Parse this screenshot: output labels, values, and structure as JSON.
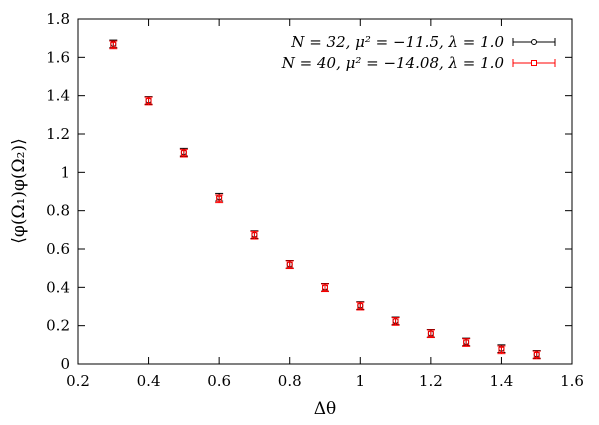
{
  "chart_data": {
    "type": "scatter",
    "xlabel": "Δθ",
    "ylabel": "⟨φ(Ω₁)φ(Ω₂)⟩",
    "xlim": [
      0.2,
      1.6
    ],
    "ylim": [
      0,
      1.8
    ],
    "xticks": [
      "0.2",
      "0.4",
      "0.6",
      "0.8",
      "1",
      "1.2",
      "1.4",
      "1.6"
    ],
    "yticks": [
      "0",
      "0.2",
      "0.4",
      "0.6",
      "0.8",
      "1",
      "1.2",
      "1.4",
      "1.6",
      "1.8"
    ],
    "grid": false,
    "legend_position": "top-right",
    "series": [
      {
        "name": "N = 32, μ² = −11.5, λ = 1.0",
        "color": "#000000",
        "marker": "circle",
        "x": [
          0.3,
          0.4,
          0.5,
          0.6,
          0.7,
          0.8,
          0.9,
          1.0,
          1.1,
          1.2,
          1.3,
          1.4,
          1.5
        ],
        "y": [
          1.67,
          1.375,
          1.105,
          0.87,
          0.675,
          0.52,
          0.4,
          0.305,
          0.225,
          0.16,
          0.115,
          0.08,
          0.05
        ],
        "err": [
          0.02,
          0.02,
          0.02,
          0.02,
          0.02,
          0.02,
          0.02,
          0.02,
          0.02,
          0.02,
          0.02,
          0.02,
          0.02
        ]
      },
      {
        "name": "N = 40, μ² = −14.08, λ = 1.0",
        "color": "#ff0000",
        "marker": "square",
        "x": [
          0.3,
          0.4,
          0.5,
          0.6,
          0.7,
          0.8,
          0.9,
          1.0,
          1.1,
          1.2,
          1.3,
          1.4,
          1.5
        ],
        "y": [
          1.665,
          1.372,
          1.1,
          0.862,
          0.672,
          0.518,
          0.398,
          0.302,
          0.222,
          0.158,
          0.112,
          0.074,
          0.047
        ],
        "err": [
          0.02,
          0.02,
          0.02,
          0.02,
          0.02,
          0.02,
          0.02,
          0.02,
          0.02,
          0.02,
          0.02,
          0.02,
          0.02
        ]
      }
    ]
  }
}
